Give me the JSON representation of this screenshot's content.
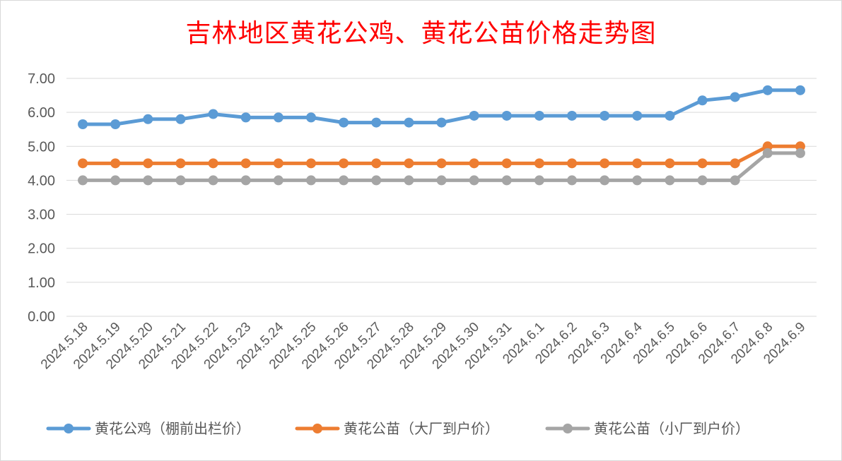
{
  "chart_data": {
    "type": "line",
    "title": "吉林地区黄花公鸡、黄花公苗价格走势图",
    "xlabel": "",
    "ylabel": "",
    "categories": [
      "2024.5.18",
      "2024.5.19",
      "2024.5.20",
      "2024.5.21",
      "2024.5.22",
      "2024.5.23",
      "2024.5.24",
      "2024.5.25",
      "2024.5.26",
      "2024.5.27",
      "2024.5.28",
      "2024.5.29",
      "2024.5.30",
      "2024.5.31",
      "2024.6.1",
      "2024.6.2",
      "2024.6.3",
      "2024.6.4",
      "2024.6.5",
      "2024.6.6",
      "2024.6.7",
      "2024.6.8",
      "2024.6.9"
    ],
    "ylim": [
      0,
      7
    ],
    "yticks": [
      "0.00",
      "1.00",
      "2.00",
      "3.00",
      "4.00",
      "5.00",
      "6.00",
      "7.00"
    ],
    "grid": true,
    "legend_position": "bottom",
    "series": [
      {
        "name": "黄花公鸡（棚前出栏价）",
        "color": "#5b9bd5",
        "values": [
          5.65,
          5.65,
          5.8,
          5.8,
          5.95,
          5.85,
          5.85,
          5.85,
          5.7,
          5.7,
          5.7,
          5.7,
          5.9,
          5.9,
          5.9,
          5.9,
          5.9,
          5.9,
          5.9,
          6.35,
          6.45,
          6.65,
          6.65
        ]
      },
      {
        "name": "黄花公苗（大厂到户价）",
        "color": "#ed7d31",
        "values": [
          4.5,
          4.5,
          4.5,
          4.5,
          4.5,
          4.5,
          4.5,
          4.5,
          4.5,
          4.5,
          4.5,
          4.5,
          4.5,
          4.5,
          4.5,
          4.5,
          4.5,
          4.5,
          4.5,
          4.5,
          4.5,
          5.0,
          5.0
        ]
      },
      {
        "name": "黄花公苗（小厂到户价）",
        "color": "#a5a5a5",
        "values": [
          4.0,
          4.0,
          4.0,
          4.0,
          4.0,
          4.0,
          4.0,
          4.0,
          4.0,
          4.0,
          4.0,
          4.0,
          4.0,
          4.0,
          4.0,
          4.0,
          4.0,
          4.0,
          4.0,
          4.0,
          4.0,
          4.8,
          4.8
        ]
      }
    ]
  }
}
